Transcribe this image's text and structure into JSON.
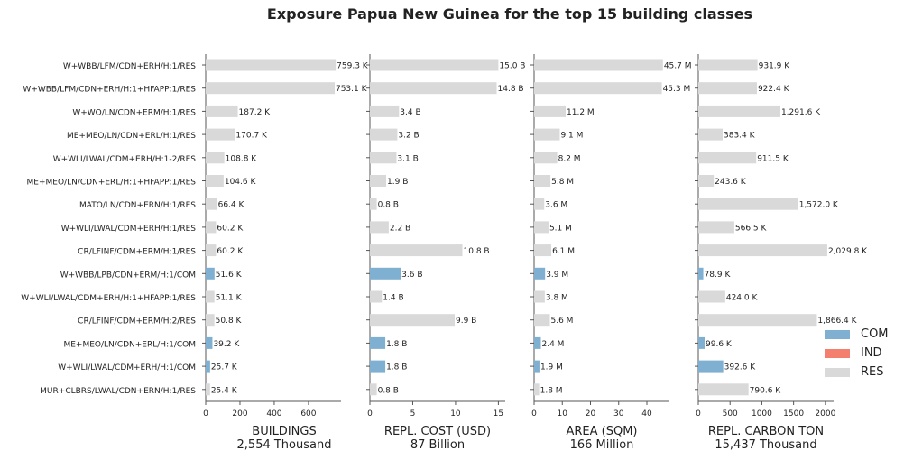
{
  "chart_data": {
    "type": "bar",
    "orientation": "horizontal",
    "title": "Exposure Papua New Guinea for the top 15 building classes",
    "categories": [
      "W+WBB/LFM/CDN+ERH/H:1/RES",
      "W+WBB/LFM/CDN+ERH/H:1+HFAPP:1/RES",
      "W+WO/LN/CDN+ERM/H:1/RES",
      "ME+MEO/LN/CDN+ERL/H:1/RES",
      "W+WLI/LWAL/CDM+ERH/H:1-2/RES",
      "ME+MEO/LN/CDN+ERL/H:1+HFAPP:1/RES",
      "MATO/LN/CDN+ERN/H:1/RES",
      "W+WLI/LWAL/CDM+ERH/H:1/RES",
      "CR/LFINF/CDM+ERM/H:1/RES",
      "W+WBB/LPB/CDN+ERM/H:1/COM",
      "W+WLI/LWAL/CDM+ERH/H:1+HFAPP:1/RES",
      "CR/LFINF/CDM+ERM/H:2/RES",
      "ME+MEO/LN/CDN+ERL/H:1/COM",
      "W+WLI/LWAL/CDM+ERH/H:1/COM",
      "MUR+CLBRS/LWAL/CDN+ERN/H:1/RES"
    ],
    "occupancy": [
      "RES",
      "RES",
      "RES",
      "RES",
      "RES",
      "RES",
      "RES",
      "RES",
      "RES",
      "COM",
      "RES",
      "RES",
      "COM",
      "COM",
      "RES"
    ],
    "legend": {
      "placement": "lower-right",
      "entries": [
        {
          "name": "COM",
          "color": "#7fb0d2"
        },
        {
          "name": "IND",
          "color": "#f47f6e"
        },
        {
          "name": "RES",
          "color": "#d9d9d9"
        }
      ]
    },
    "panels": [
      {
        "xlabel": "BUILDINGS",
        "total": "2,554 Thousand",
        "xlim": [
          0,
          790
        ],
        "ticks": [
          0,
          200,
          400,
          600
        ],
        "tick_labels": [
          "0",
          "200",
          "400",
          "600"
        ],
        "values": [
          759.3,
          753.1,
          187.2,
          170.7,
          108.8,
          104.6,
          66.4,
          60.2,
          60.2,
          51.6,
          51.1,
          50.8,
          39.2,
          25.7,
          25.4
        ],
        "labels": [
          "759.3 K",
          "753.1 K",
          "187.2 K",
          "170.7 K",
          "108.8 K",
          "104.6 K",
          "66.4 K",
          "60.2 K",
          "60.2 K",
          "51.6 K",
          "51.1 K",
          "50.8 K",
          "39.2 K",
          "25.7 K",
          "25.4 K"
        ]
      },
      {
        "xlabel": "REPL. COST (USD)",
        "total": "87 Billion",
        "xlim": [
          0,
          15.8
        ],
        "ticks": [
          0,
          5,
          10,
          15
        ],
        "tick_labels": [
          "0",
          "5",
          "10",
          "15"
        ],
        "values": [
          15.0,
          14.8,
          3.4,
          3.2,
          3.1,
          1.9,
          0.8,
          2.2,
          10.8,
          3.6,
          1.4,
          9.9,
          1.8,
          1.8,
          0.8
        ],
        "labels": [
          "15.0 B",
          "14.8 B",
          "3.4 B",
          "3.2 B",
          "3.1 B",
          "1.9 B",
          "0.8 B",
          "2.2 B",
          "10.8 B",
          "3.6 B",
          "1.4 B",
          "9.9 B",
          "1.8 B",
          "1.8 B",
          "0.8 B"
        ]
      },
      {
        "xlabel": "AREA (SQM)",
        "total": "166 Million",
        "xlim": [
          0,
          48
        ],
        "ticks": [
          0,
          10,
          20,
          30,
          40
        ],
        "tick_labels": [
          "0",
          "10",
          "20",
          "30",
          "40"
        ],
        "values": [
          45.7,
          45.3,
          11.2,
          9.1,
          8.2,
          5.8,
          3.6,
          5.1,
          6.1,
          3.9,
          3.8,
          5.6,
          2.4,
          1.9,
          1.8
        ],
        "labels": [
          "45.7 M",
          "45.3 M",
          "11.2 M",
          "9.1 M",
          "8.2 M",
          "5.8 M",
          "3.6 M",
          "5.1 M",
          "6.1 M",
          "3.9 M",
          "3.8 M",
          "5.6 M",
          "2.4 M",
          "1.9 M",
          "1.8 M"
        ]
      },
      {
        "xlabel": "REPL. CARBON TON",
        "total": "15,437 Thousand",
        "xlim": [
          0,
          2130
        ],
        "ticks": [
          0,
          500,
          1000,
          1500,
          2000
        ],
        "tick_labels": [
          "0",
          "500",
          "1000",
          "1500",
          "2000"
        ],
        "values": [
          931.9,
          922.4,
          1291.6,
          383.4,
          911.5,
          243.6,
          1572.0,
          566.5,
          2029.8,
          78.9,
          424.0,
          1866.4,
          99.6,
          392.6,
          790.6
        ],
        "labels": [
          "931.9 K",
          "922.4 K",
          "1,291.6 K",
          "383.4 K",
          "911.5 K",
          "243.6 K",
          "1,572.0 K",
          "566.5 K",
          "2,029.8 K",
          "78.9 K",
          "424.0 K",
          "1,866.4 K",
          "99.6 K",
          "392.6 K",
          "790.6 K"
        ]
      }
    ]
  }
}
